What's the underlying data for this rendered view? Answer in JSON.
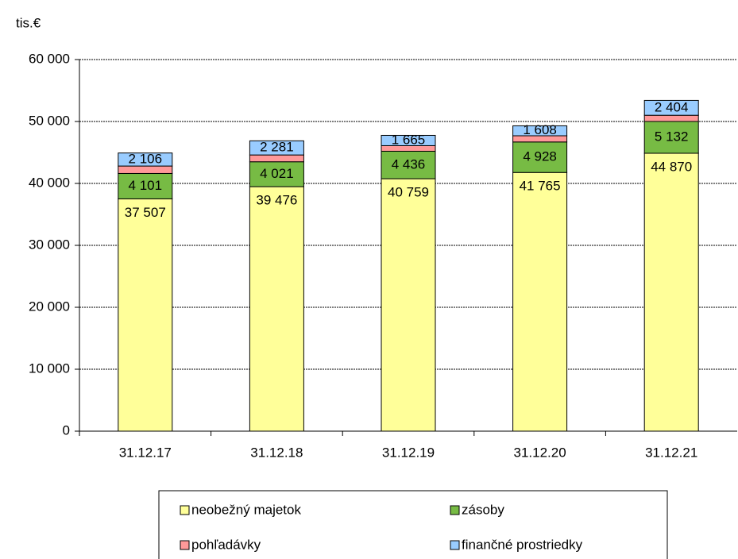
{
  "chart_data": {
    "type": "bar",
    "stacked": true,
    "y_label": "tis.€",
    "categories": [
      "31.12.17",
      "31.12.18",
      "31.12.19",
      "31.12.20",
      "31.12.21"
    ],
    "series": [
      {
        "name": "neobežný majetok",
        "color": "#ffff99",
        "values": [
          37507,
          39476,
          40759,
          41765,
          44870
        ],
        "value_labels": [
          "37 507",
          "39 476",
          "40 759",
          "41 765",
          "44 870"
        ]
      },
      {
        "name": "zásoby",
        "color": "#77bb44",
        "values": [
          4101,
          4021,
          4436,
          4928,
          5132
        ],
        "value_labels": [
          "4 101",
          "4 021",
          "4 436",
          "4 928",
          "5 132"
        ]
      },
      {
        "name": "pohľadávky",
        "color": "#ff9999",
        "values": [
          1200,
          1100,
          900,
          1000,
          1000
        ]
      },
      {
        "name": "finančné prostriedky",
        "color": "#99ccff",
        "values": [
          2106,
          2281,
          1665,
          1608,
          2404
        ],
        "value_labels": [
          "2 106",
          "2 281",
          "1 665",
          "1 608",
          "2 404"
        ]
      }
    ],
    "ylim": [
      0,
      60000
    ],
    "yticks": [
      0,
      {
        "value": 10000,
        "label": "10 000"
      },
      {
        "value": 20000,
        "label": "20 000"
      },
      {
        "value": 30000,
        "label": "30 000"
      },
      {
        "value": 40000,
        "label": "40 000"
      },
      {
        "value": 50000,
        "label": "50 000"
      },
      {
        "value": 60000,
        "label": "60 000"
      }
    ],
    "grid": true
  }
}
